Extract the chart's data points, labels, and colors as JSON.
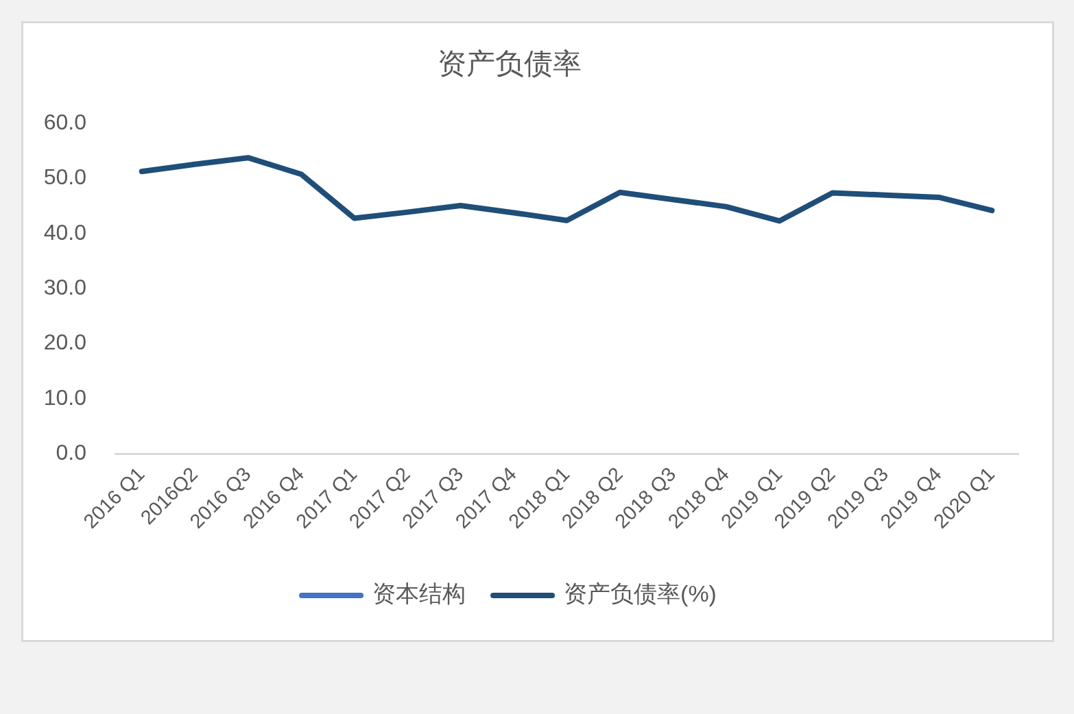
{
  "chart_data": {
    "type": "line",
    "title": "资产负债率",
    "categories": [
      "2016 Q1",
      "2016Q2",
      "2016 Q3",
      "2016 Q4",
      "2017 Q1",
      "2017 Q2",
      "2017 Q3",
      "2017 Q4",
      "2018 Q1",
      "2018 Q2",
      "2018 Q3",
      "2018 Q4",
      "2019 Q1",
      "2019 Q2",
      "2019 Q3",
      "2019 Q4",
      "2020 Q1"
    ],
    "series": [
      {
        "name": "资本结构",
        "color": "#4472c4",
        "values": [
          null,
          null,
          null,
          null,
          null,
          null,
          null,
          null,
          null,
          null,
          null,
          null,
          null,
          null,
          null,
          null,
          null
        ]
      },
      {
        "name": "资产负债率(%)",
        "color": "#1f4e79",
        "values": [
          51.3,
          52.6,
          53.8,
          50.8,
          42.8,
          43.9,
          45.1,
          43.8,
          42.4,
          47.5,
          46.2,
          44.9,
          42.3,
          47.4,
          47.0,
          46.6,
          44.2
        ]
      }
    ],
    "ylim": [
      0,
      60
    ],
    "yticks": [
      {
        "value": 0,
        "label": "0.0"
      },
      {
        "value": 10,
        "label": "10.0"
      },
      {
        "value": 20,
        "label": "20.0"
      },
      {
        "value": 30,
        "label": "30.0"
      },
      {
        "value": 40,
        "label": "40.0"
      },
      {
        "value": 50,
        "label": "50.0"
      },
      {
        "value": 60,
        "label": "60.0"
      }
    ],
    "grid": false,
    "legend": "bottom",
    "marker": "none",
    "line_style": "solid"
  }
}
